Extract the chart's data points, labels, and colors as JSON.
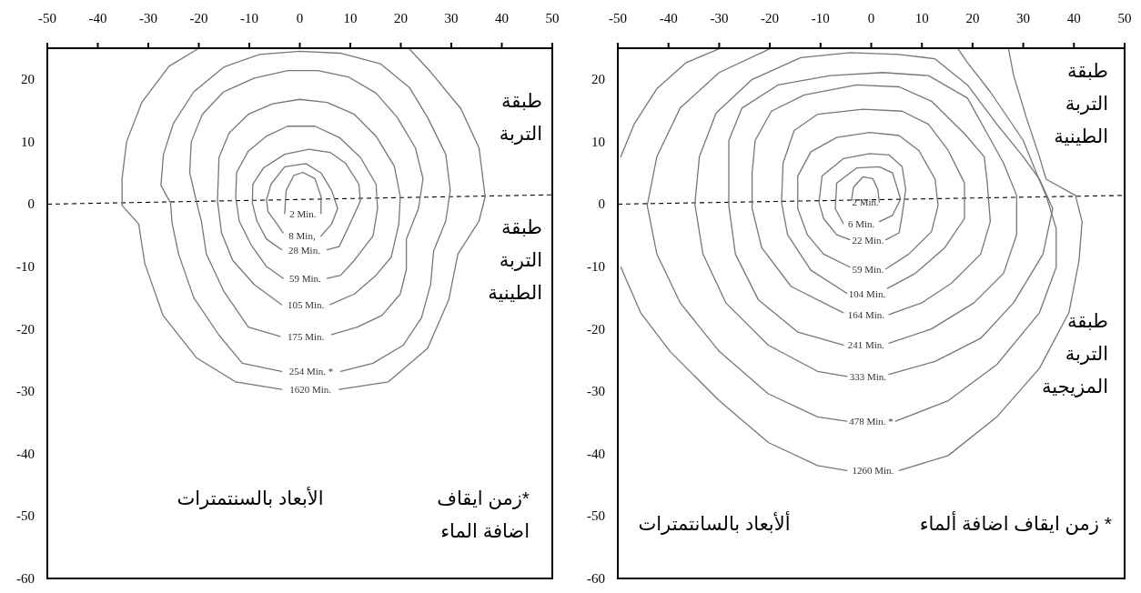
{
  "chart_data": [
    {
      "type": "line",
      "xlim": [
        -50,
        50
      ],
      "xticks": [
        -50,
        -40,
        -30,
        -20,
        -10,
        0,
        10,
        20,
        30,
        40,
        50
      ],
      "ylim": [
        -60,
        25
      ],
      "yticks": [
        -60,
        -50,
        -40,
        -30,
        -20,
        -10,
        0,
        10,
        20
      ],
      "grid": false,
      "series": [
        {
          "color": "#000000",
          "line_style": "dashed",
          "x": [
            -50,
            50
          ],
          "values": [
            0,
            1.5
          ]
        },
        {
          "name": "2 Min.",
          "color": "#777777",
          "x": [
            -3.0,
            -2.7,
            -1.2,
            0.6,
            3.0,
            4.2,
            4.2
          ],
          "values": [
            -1.5,
            2.2,
            4.6,
            5.1,
            4.1,
            1.2,
            -1.5
          ]
        },
        {
          "name": "8 Min,",
          "color": "#777777",
          "x": [
            4.2,
            6.3,
            7.5,
            6.3,
            4.2,
            1.2,
            -3.0,
            -5.7,
            -6.6,
            -6.3,
            -4.5,
            -3.3
          ],
          "values": [
            -5.1,
            -3.2,
            -0.7,
            2.2,
            5.0,
            6.5,
            6.0,
            3.2,
            0.7,
            -1.2,
            -3.2,
            -4.6
          ]
        },
        {
          "name": "28 Min.",
          "color": "#777777",
          "x": [
            5.4,
            7.8,
            9.9,
            12.0,
            11.7,
            9.0,
            6.0,
            1.8,
            -3.0,
            -7.2,
            -9.3,
            -9.4,
            -8.5,
            -6.6,
            -3.6
          ],
          "values": [
            -7.3,
            -6.8,
            -3.2,
            0.5,
            3.2,
            6.6,
            8.3,
            8.8,
            8.0,
            5.8,
            3.2,
            0.2,
            -2.7,
            -5.6,
            -7.3
          ]
        },
        {
          "name": "59 Min.",
          "color": "#777777",
          "x": [
            5.4,
            8.1,
            10.8,
            14.5,
            15.4,
            15.1,
            12.0,
            7.8,
            3.0,
            -2.4,
            -6.6,
            -10.2,
            -12.5,
            -12.7,
            -12.0,
            -9.6,
            -6.6,
            -3.3
          ],
          "values": [
            -11.9,
            -11.4,
            -9.0,
            -5.1,
            -0.7,
            3.2,
            7.5,
            10.7,
            12.5,
            12.5,
            10.9,
            8.5,
            5.1,
            1.2,
            -2.7,
            -6.6,
            -10.0,
            -11.9
          ]
        },
        {
          "name": "105 Min.",
          "color": "#777777",
          "x": [
            6.0,
            10.8,
            15.1,
            18.1,
            19.6,
            19.9,
            18.7,
            15.1,
            10.8,
            5.4,
            0,
            -5.4,
            -10.2,
            -14.0,
            -16.0,
            -16.3,
            -15.5,
            -13.3,
            -9.0,
            -3.6
          ],
          "values": [
            -16.1,
            -14.4,
            -11.4,
            -8.5,
            -3.2,
            1.2,
            6.1,
            10.9,
            14.4,
            16.3,
            16.8,
            16.1,
            14.4,
            11.4,
            7.5,
            0.5,
            -4.6,
            -9.0,
            -12.9,
            -16.1
          ]
        },
        {
          "name": "175 Min.",
          "color": "#777777",
          "x": [
            6.3,
            11.4,
            16.3,
            19.9,
            21.1,
            21.1,
            23.5,
            24.4,
            22.9,
            19.3,
            15.1,
            9.6,
            3.6,
            -2.4,
            -9.0,
            -15.1,
            -19.3,
            -21.5,
            -21.8,
            -20.5,
            -19.5,
            -18.5,
            -15.1,
            -10.2,
            -3.9
          ],
          "values": [
            -20.9,
            -19.7,
            -17.8,
            -14.4,
            -10.5,
            -5.6,
            -0.7,
            4.1,
            9.0,
            13.9,
            17.8,
            20.4,
            21.4,
            21.4,
            20.2,
            18.0,
            14.4,
            10.0,
            5.1,
            0.5,
            -2.7,
            -8.0,
            -13.9,
            -19.7,
            -21.2
          ]
        },
        {
          "name": "254 Min. *",
          "color": "#777777",
          "x": [
            8.1,
            14.5,
            20.5,
            24.1,
            25.9,
            26.5,
            28.9,
            29.8,
            28.9,
            25.3,
            21.7,
            16.0,
            8.0,
            0,
            -8.0,
            -15.0,
            -21.0,
            -25.0,
            -27.0,
            -27.5,
            -25.6,
            -25.3,
            -24.0,
            -21.0,
            -16.0,
            -11.4,
            -3.6
          ],
          "values": [
            -26.8,
            -25.5,
            -22.6,
            -18.2,
            -12.9,
            -7.5,
            -2.7,
            2.2,
            8.0,
            13.9,
            18.7,
            22.5,
            24.2,
            24.5,
            24.0,
            22.0,
            18.0,
            13.0,
            8.0,
            3.0,
            0.2,
            -3.0,
            -8.0,
            -15.0,
            -21.0,
            -25.5,
            -26.8
          ]
        },
        {
          "name": "1620 Min.",
          "color": "#777777",
          "x": [
            7.8,
            17.5,
            25.3,
            29.5,
            31.3,
            35.5,
            36.7,
            35.5,
            31.9,
            25.9,
            21.7,
            null,
            -20.2,
            -25.9,
            -31.3,
            -34.3,
            -35.2,
            -35.2,
            -31.9,
            -30.7,
            -27.1,
            -20.5,
            -12.7,
            -3.6
          ],
          "values": [
            -29.7,
            -28.5,
            -23.1,
            -15.3,
            -8.0,
            -2.7,
            1.2,
            9.0,
            15.3,
            21.2,
            24.9,
            null,
            24.9,
            22.1,
            16.3,
            10.0,
            4.1,
            -0.2,
            -3.2,
            -9.5,
            -17.8,
            -24.6,
            -28.5,
            -29.7
          ]
        }
      ],
      "annotations": [
        "طبقة\nالتربة",
        "طبقة\nالتربة\nالطينية",
        "الأبعاد بالسنتمترات",
        "*زمن ايقاف\nاضافة الماء"
      ]
    },
    {
      "type": "line",
      "xlim": [
        -50,
        50
      ],
      "xticks": [
        -50,
        -40,
        -30,
        -20,
        -10,
        0,
        10,
        20,
        30,
        40,
        50
      ],
      "ylim": [
        -60,
        25
      ],
      "yticks": [
        -60,
        -50,
        -40,
        -30,
        -20,
        -10,
        0,
        10,
        20
      ],
      "grid": false,
      "series": [
        {
          "color": "#000000",
          "line_style": "dashed",
          "x": [
            -50,
            50
          ],
          "values": [
            0,
            1.4
          ]
        },
        {
          "name": "2 Min.",
          "color": "#777777",
          "x": [
            -3.9,
            -3.5,
            -1.6,
            0.3,
            1.3,
            1.6
          ],
          "values": [
            0.6,
            2.7,
            4.4,
            4.1,
            2.4,
            0.3
          ]
        },
        {
          "name": "6 Min.",
          "color": "#777777",
          "x": [
            1.6,
            4.2,
            5.8,
            4.2,
            1.6,
            -2.9,
            -6.8,
            -7.1,
            -5.5
          ],
          "values": [
            -2.8,
            -1.8,
            0.8,
            5.0,
            6.0,
            5.8,
            3.4,
            -0.7,
            -3.1
          ]
        },
        {
          "name": "22 Min.",
          "color": "#777777",
          "x": [
            2.9,
            5.5,
            6.1,
            6.8,
            6.1,
            3.5,
            -0.3,
            -5.5,
            -9.7,
            -10.3,
            -9.4,
            -6.8,
            -4.2
          ],
          "values": [
            -5.7,
            -4.6,
            -1.8,
            2.4,
            6.0,
            7.9,
            8.1,
            7.3,
            4.5,
            0.3,
            -2.3,
            -4.9,
            -5.7
          ]
        },
        {
          "name": "59 Min.",
          "color": "#777777",
          "x": [
            2.9,
            7.4,
            11.9,
            13.2,
            12.6,
            9.4,
            5.5,
            -0.3,
            -6.8,
            -11.9,
            -14.5,
            -14.5,
            -12.6,
            -9.4,
            -4.2
          ],
          "values": [
            -10.4,
            -8.0,
            -4.4,
            -0.2,
            4.0,
            8.6,
            11.0,
            11.5,
            10.7,
            8.4,
            4.5,
            -0.7,
            -4.9,
            -8.0,
            -10.1
          ]
        },
        {
          "name": "104 Min.",
          "color": "#777777",
          "x": [
            3.2,
            8.7,
            14.5,
            18.4,
            18.4,
            15.2,
            11.3,
            6.1,
            -1.6,
            -10.6,
            -15.2,
            -17.4,
            -17.7,
            -16.5,
            -11.9,
            -4.8
          ],
          "values": [
            -13.5,
            -11.1,
            -7.0,
            -2.3,
            3.4,
            8.6,
            12.8,
            14.9,
            15.2,
            14.4,
            11.8,
            6.6,
            0.3,
            -4.9,
            -10.6,
            -14.3
          ]
        },
        {
          "name": "164 Min.",
          "color": "#777777",
          "x": [
            3.5,
            10.0,
            15.8,
            21.6,
            23.5,
            22.9,
            22.3,
            18.4,
            11.9,
            5.5,
            -2.9,
            -13.2,
            -19.7,
            -22.9,
            -23.5,
            -23.5,
            -21.6,
            -15.8,
            -5.5
          ],
          "values": [
            -17.7,
            -15.8,
            -12.7,
            -8.0,
            -2.8,
            3.4,
            7.6,
            11.3,
            16.5,
            18.8,
            19.1,
            17.5,
            14.9,
            10.2,
            5.0,
            -0.7,
            -7.0,
            -13.2,
            -17.4
          ]
        },
        {
          "name": "241 Min.",
          "color": "#777777",
          "x": [
            3.5,
            11.9,
            20.3,
            26.1,
            28.7,
            28.7,
            26.1,
            22.9,
            19.0,
            11.3,
            2.3,
            -8.1,
            -18.4,
            -25.5,
            -28.1,
            -28.1,
            -26.8,
            -22.3,
            -14.5,
            -5.5
          ],
          "values": [
            -22.3,
            -20.0,
            -15.8,
            -11.1,
            -4.9,
            1.4,
            6.6,
            11.3,
            17.0,
            20.6,
            21.1,
            20.6,
            19.1,
            15.4,
            10.2,
            -0.2,
            -8.0,
            -15.3,
            -20.5,
            -22.6
          ]
        },
        {
          "name": "333 Min.",
          "color": "#777777",
          "x": [
            3.5,
            12.6,
            21.6,
            28.1,
            33.9,
            35.8,
            33.2,
            30.0,
            24.8,
            19.0,
            12.6,
            5.5,
            -4.2,
            -13.9,
            -23.5,
            -30.6,
            -33.9,
            -34.8,
            -33.2,
            -28.7,
            -20.3,
            -10.6,
            -4.8
          ],
          "values": [
            -27.3,
            -25.2,
            -21.5,
            -15.8,
            -8.0,
            -0.7,
            4.0,
            7.6,
            12.8,
            19.1,
            23.3,
            24.0,
            24.3,
            23.5,
            20.0,
            14.6,
            7.6,
            0.0,
            -8.0,
            -15.8,
            -22.6,
            -26.8,
            -27.6
          ]
        },
        {
          "name": "478 Min. *",
          "color": "#777777",
          "x": [
            4.8,
            15.2,
            24.8,
            33.2,
            36.5,
            36.5,
            34.5,
            32.6,
            30.0,
            23.5,
            19.0,
            17.1,
            null,
            -20.0,
            -30.0,
            -37.7,
            -42.3,
            -44.2,
            -42.3,
            -37.7,
            -30.0,
            -20.3,
            -10.6,
            -4.8
          ],
          "values": [
            -34.8,
            -31.5,
            -25.7,
            -17.4,
            -10.1,
            -3.9,
            1.4,
            5.0,
            10.2,
            18.0,
            22.7,
            24.9,
            null,
            24.9,
            21.1,
            15.4,
            7.6,
            -0.2,
            -8.0,
            -15.8,
            -23.6,
            -30.4,
            -34.1,
            -34.8
          ]
        },
        {
          "name": "1260 Min.",
          "color": "#777777",
          "x": [
            5.5,
            15.2,
            24.8,
            33.2,
            39.0,
            41.0,
            41.6,
            40.3,
            34.5,
            33.2,
            30.6,
            28.1,
            27.1,
            null,
            -30.0,
            -36.5,
            -42.3,
            -46.8,
            -49.4,
            null,
            -49.4,
            -45.5,
            -39.7,
            -30.0,
            -20.3,
            -10.6,
            -4.8
          ],
          "values": [
            -42.7,
            -40.3,
            -34.1,
            -26.3,
            -17.4,
            -9.1,
            -2.8,
            1.4,
            4.0,
            7.6,
            13.9,
            20.6,
            24.9,
            null,
            24.9,
            22.7,
            18.5,
            12.8,
            7.6,
            null,
            -10.1,
            -17.4,
            -23.6,
            -31.5,
            -38.2,
            -41.9,
            -42.7
          ]
        }
      ],
      "annotations": [
        "طبقة\nالتربة\nالطينية",
        "طبقة\nالتربة\nالمزيجية",
        "ألأبعاد بالسانتمترات",
        "* زمن ايقاف اضافة ألماء"
      ]
    }
  ]
}
